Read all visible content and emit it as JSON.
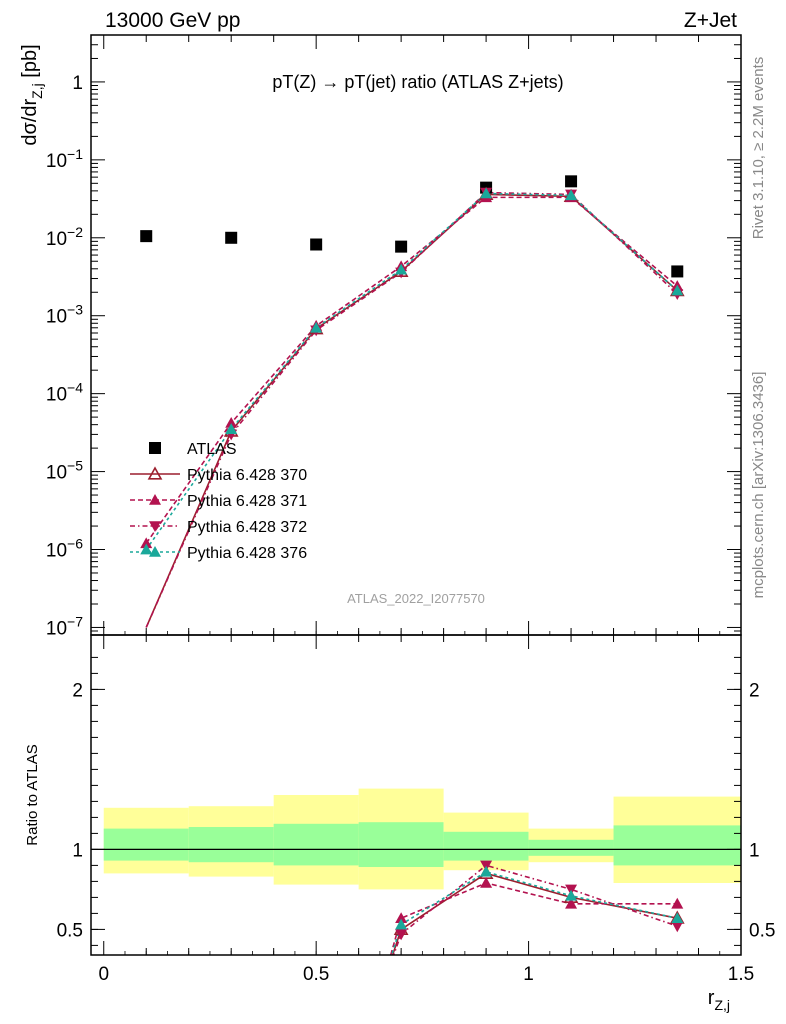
{
  "header": {
    "left": "13000 GeV pp",
    "right": "Z+Jet"
  },
  "side_labels": {
    "rivet": "Rivet 3.1.10, ≥ 2.2M events",
    "mcplots": "mcplots.cern.ch [arXiv:1306.3436]"
  },
  "colors": {
    "data": "#000000",
    "p370": "#9c1f2e",
    "p371": "#b3124f",
    "p372": "#b3124f",
    "p376": "#1aa89a",
    "band_inner": "#99ff99",
    "band_outer": "#ffff99"
  },
  "chart_data": [
    {
      "type": "scatter",
      "title": "pT(Z) → pT(jet) ratio (ATLAS Z+jets)",
      "ylabel": "dσ/dr_{Z,j} [pb]",
      "xlabel": "",
      "yscale": "log",
      "ylim": [
        8e-08,
        4
      ],
      "xlim": [
        -0.03,
        1.5
      ],
      "watermark": "ATLAS_2022_I2077570",
      "yticks": [
        {
          "v": 1,
          "label": "1"
        },
        {
          "v": 0.1,
          "label": "10",
          "exp": "−1"
        },
        {
          "v": 0.01,
          "label": "10",
          "exp": "−2"
        },
        {
          "v": 0.001,
          "label": "10",
          "exp": "−3"
        },
        {
          "v": 0.0001,
          "label": "10",
          "exp": "−4"
        },
        {
          "v": 1e-05,
          "label": "10",
          "exp": "−5"
        },
        {
          "v": 1e-06,
          "label": "10",
          "exp": "−6"
        },
        {
          "v": 1e-07,
          "label": "10",
          "exp": "−7"
        }
      ],
      "x": [
        0.1,
        0.3,
        0.5,
        0.7,
        0.9,
        1.1,
        1.35
      ],
      "series": [
        {
          "name": "ATLAS",
          "style": "data",
          "values": [
            0.0105,
            0.01,
            0.0082,
            0.0077,
            0.044,
            0.053,
            0.0037
          ]
        },
        {
          "name": "Pythia 6.428 370",
          "style": "p370",
          "values": [
            1e-07,
            3.3e-05,
            0.00068,
            0.0037,
            0.036,
            0.034,
            0.0021
          ]
        },
        {
          "name": "Pythia 6.428 371",
          "style": "p371",
          "values": [
            1.2e-06,
            4.2e-05,
            0.00074,
            0.0043,
            0.033,
            0.033,
            0.0024
          ]
        },
        {
          "name": "Pythia 6.428 372",
          "style": "p372",
          "values": [
            1e-07,
            3e-05,
            0.00065,
            0.0036,
            0.038,
            0.036,
            0.0019
          ]
        },
        {
          "name": "Pythia 6.428 376",
          "style": "p376",
          "values": [
            1e-06,
            3.5e-05,
            0.0007,
            0.0039,
            0.037,
            0.035,
            0.0021
          ]
        }
      ]
    },
    {
      "type": "line",
      "ylabel": "Ratio to ATLAS",
      "xlabel": "r_{Z,j}",
      "ylim": [
        0.34,
        2.34
      ],
      "xlim": [
        -0.03,
        1.5
      ],
      "yticks": [
        0.5,
        1,
        2
      ],
      "ytick_labels": [
        "0.5",
        "1",
        "2"
      ],
      "xticks": [
        0,
        0.5,
        1,
        1.5
      ],
      "xtick_labels": [
        "0",
        "0.5",
        "1",
        "1.5"
      ],
      "bins": [
        {
          "lo": 0.0,
          "hi": 0.2,
          "inner": [
            0.93,
            1.13
          ],
          "outer": [
            0.85,
            1.26
          ]
        },
        {
          "lo": 0.2,
          "hi": 0.4,
          "inner": [
            0.92,
            1.14
          ],
          "outer": [
            0.83,
            1.27
          ]
        },
        {
          "lo": 0.4,
          "hi": 0.6,
          "inner": [
            0.9,
            1.16
          ],
          "outer": [
            0.78,
            1.34
          ]
        },
        {
          "lo": 0.6,
          "hi": 0.8,
          "inner": [
            0.89,
            1.17
          ],
          "outer": [
            0.75,
            1.38
          ]
        },
        {
          "lo": 0.8,
          "hi": 1.0,
          "inner": [
            0.93,
            1.11
          ],
          "outer": [
            0.87,
            1.23
          ]
        },
        {
          "lo": 1.0,
          "hi": 1.2,
          "inner": [
            0.96,
            1.06
          ],
          "outer": [
            0.92,
            1.13
          ]
        },
        {
          "lo": 1.2,
          "hi": 1.5,
          "inner": [
            0.9,
            1.15
          ],
          "outer": [
            0.79,
            1.33
          ]
        }
      ],
      "x": [
        0.65,
        0.7,
        0.9,
        1.1,
        1.35
      ],
      "series": [
        {
          "name": "Pythia 6.428 370",
          "style": "p370",
          "values": [
            0.1,
            0.5,
            0.85,
            0.7,
            0.57
          ]
        },
        {
          "name": "Pythia 6.428 371",
          "style": "p371",
          "values": [
            0.1,
            0.57,
            0.79,
            0.66,
            0.66
          ]
        },
        {
          "name": "Pythia 6.428 372",
          "style": "p372",
          "values": [
            0.1,
            0.47,
            0.9,
            0.75,
            0.52
          ]
        },
        {
          "name": "Pythia 6.428 376",
          "style": "p376",
          "values": [
            0.1,
            0.53,
            0.86,
            0.71,
            0.57
          ]
        }
      ]
    }
  ]
}
